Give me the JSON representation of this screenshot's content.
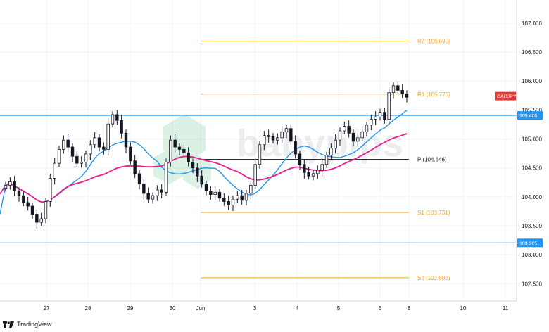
{
  "chart_data": {
    "type": "candlestick",
    "symbol": "CADJPY",
    "ylim": [
      102.2,
      107.4
    ],
    "x_tick_labels": [
      "27",
      "28",
      "29",
      "30",
      "Jun",
      "3",
      "4",
      "5",
      "6",
      "8",
      "10",
      "11"
    ],
    "y_tick_labels": [
      "107.000",
      "106.500",
      "106.000",
      "105.500",
      "105.000",
      "104.500",
      "104.000",
      "103.500",
      "103.000",
      "102.500"
    ],
    "y_ticks": [
      107.0,
      106.5,
      106.0,
      105.5,
      105.0,
      104.5,
      104.0,
      103.5,
      103.0,
      102.5
    ],
    "levels": [
      {
        "label": "R2 (106.690)",
        "value": 106.69,
        "role": "pivot"
      },
      {
        "label": "R1 (105.775)",
        "value": 105.775,
        "role": "pivot"
      },
      {
        "label": "P (104.646)",
        "value": 104.646,
        "role": "main-pivot"
      },
      {
        "label": "S1 (103.731)",
        "value": 103.731,
        "role": "pivot"
      },
      {
        "label": "S2 (102.602)",
        "value": 102.602,
        "role": "pivot"
      }
    ],
    "horizontal_lines": [
      {
        "value": 105.406,
        "label": "105.406"
      },
      {
        "value": 103.205,
        "label": "103.205"
      }
    ],
    "price_tag": {
      "label": "CADJPY",
      "value": 105.74
    },
    "closes": [
      104.2,
      104.26,
      104.1,
      104.02,
      103.9,
      103.84,
      103.7,
      103.56,
      103.62,
      103.92,
      104.32,
      104.58,
      104.82,
      104.98,
      104.86,
      104.7,
      104.58,
      104.6,
      104.74,
      104.9,
      105.02,
      104.86,
      104.82,
      105.26,
      105.42,
      105.32,
      105.1,
      104.86,
      104.62,
      104.4,
      104.22,
      104.06,
      103.96,
      104.02,
      104.12,
      104.08,
      104.6,
      104.98,
      104.86,
      104.82,
      104.76,
      104.6,
      104.5,
      104.36,
      104.22,
      104.1,
      104.04,
      104.08,
      103.98,
      103.92,
      103.86,
      103.96,
      104.02,
      103.94,
      104.06,
      104.2,
      104.56,
      104.9,
      105.06,
      105.04,
      104.98,
      105.02,
      105.12,
      105.18,
      104.96,
      104.74,
      104.56,
      104.42,
      104.36,
      104.4,
      104.46,
      104.56,
      104.72,
      104.84,
      104.98,
      105.14,
      105.22,
      105.1,
      104.96,
      105.02,
      105.12,
      105.24,
      105.34,
      105.38,
      105.46,
      105.34,
      105.8,
      105.92,
      105.84,
      105.78,
      105.72
    ]
  }
}
